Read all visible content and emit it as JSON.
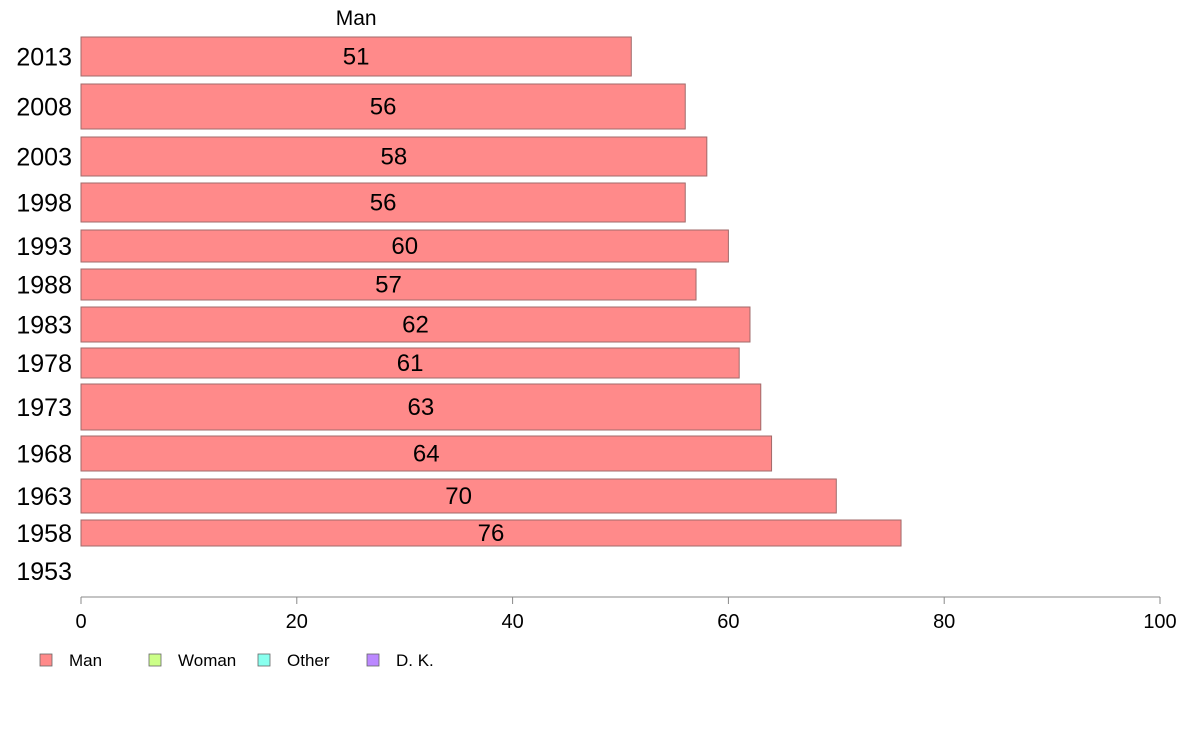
{
  "chart_data": {
    "type": "bar",
    "orientation": "horizontal",
    "stacked": true,
    "categories": [
      "2013",
      "2008",
      "2003",
      "1998",
      "1993",
      "1988",
      "1983",
      "1978",
      "1973",
      "1968",
      "1963",
      "1958",
      "1953"
    ],
    "series": [
      {
        "name": "Man",
        "color": "#ff8a8a",
        "values": [
          51,
          56,
          58,
          56,
          60,
          57,
          62,
          61,
          63,
          64,
          70,
          76,
          null
        ]
      },
      {
        "name": "Woman",
        "color": "#ccff88",
        "values": [
          null,
          null,
          null,
          null,
          null,
          null,
          null,
          null,
          null,
          null,
          null,
          null,
          null
        ]
      },
      {
        "name": "Other",
        "color": "#88ffee",
        "values": [
          null,
          null,
          null,
          null,
          null,
          null,
          null,
          null,
          null,
          null,
          null,
          null,
          null
        ]
      },
      {
        "name": "D. K.",
        "color": "#bb88ff",
        "values": [
          null,
          null,
          null,
          null,
          null,
          null,
          null,
          null,
          null,
          null,
          null,
          null,
          null
        ]
      }
    ],
    "data_labels": [
      "51",
      "56",
      "58",
      "56",
      "60",
      "57",
      "62",
      "61",
      "63",
      "64",
      "70",
      "76",
      ""
    ],
    "series_title": "Man",
    "xlim": [
      0,
      100
    ],
    "xticks": [
      "0",
      "20",
      "40",
      "60",
      "80",
      "100"
    ],
    "legend": {
      "placement": "bottom-left",
      "entries": [
        "Man",
        "Woman",
        "Other",
        "D. K."
      ]
    },
    "grid": false
  }
}
